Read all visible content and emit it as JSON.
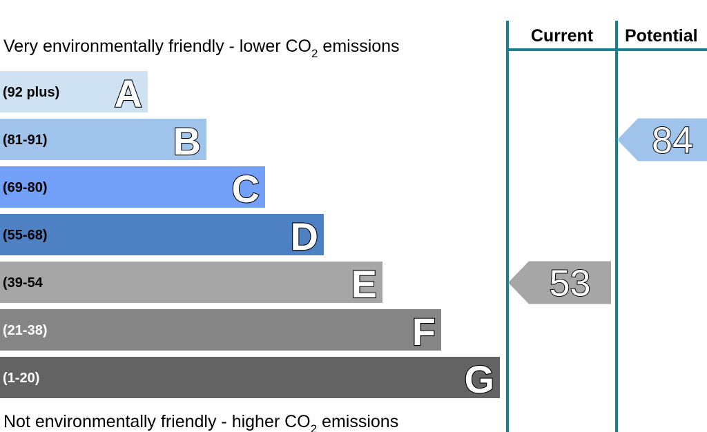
{
  "chart_data": {
    "type": "bar",
    "top_caption": {
      "before": "Very environmentally friendly - lower CO",
      "sub": "2",
      "after": " emissions"
    },
    "bottom_caption": {
      "before": "Not environmentally friendly - higher CO",
      "sub": "2",
      "after": " emissions"
    },
    "bands": [
      {
        "letter": "A",
        "range": "(92 plus)",
        "min": 92,
        "max": 100,
        "color": "#cfe2f3",
        "light_text": false
      },
      {
        "letter": "B",
        "range": "(81-91)",
        "min": 81,
        "max": 91,
        "color": "#9fc3ea",
        "light_text": false
      },
      {
        "letter": "C",
        "range": "(69-80)",
        "min": 69,
        "max": 80,
        "color": "#73a0f8",
        "light_text": false
      },
      {
        "letter": "D",
        "range": "(55-68)",
        "min": 55,
        "max": 68,
        "color": "#4d81c4",
        "light_text": false
      },
      {
        "letter": "E",
        "range": "(39-54",
        "min": 39,
        "max": 54,
        "color": "#a6a6a6",
        "light_text": false
      },
      {
        "letter": "F",
        "range": "(21-38)",
        "min": 21,
        "max": 38,
        "color": "#858585",
        "light_text": true
      },
      {
        "letter": "G",
        "range": "(1-20)",
        "min": 1,
        "max": 20,
        "color": "#636363",
        "light_text": true
      }
    ],
    "columns": [
      {
        "label": "Current",
        "value": 53,
        "color": "#a6a6a6"
      },
      {
        "label": "Potential",
        "value": 84,
        "color": "#9fc3ea"
      }
    ],
    "divider_color": "#1a7f8e"
  }
}
